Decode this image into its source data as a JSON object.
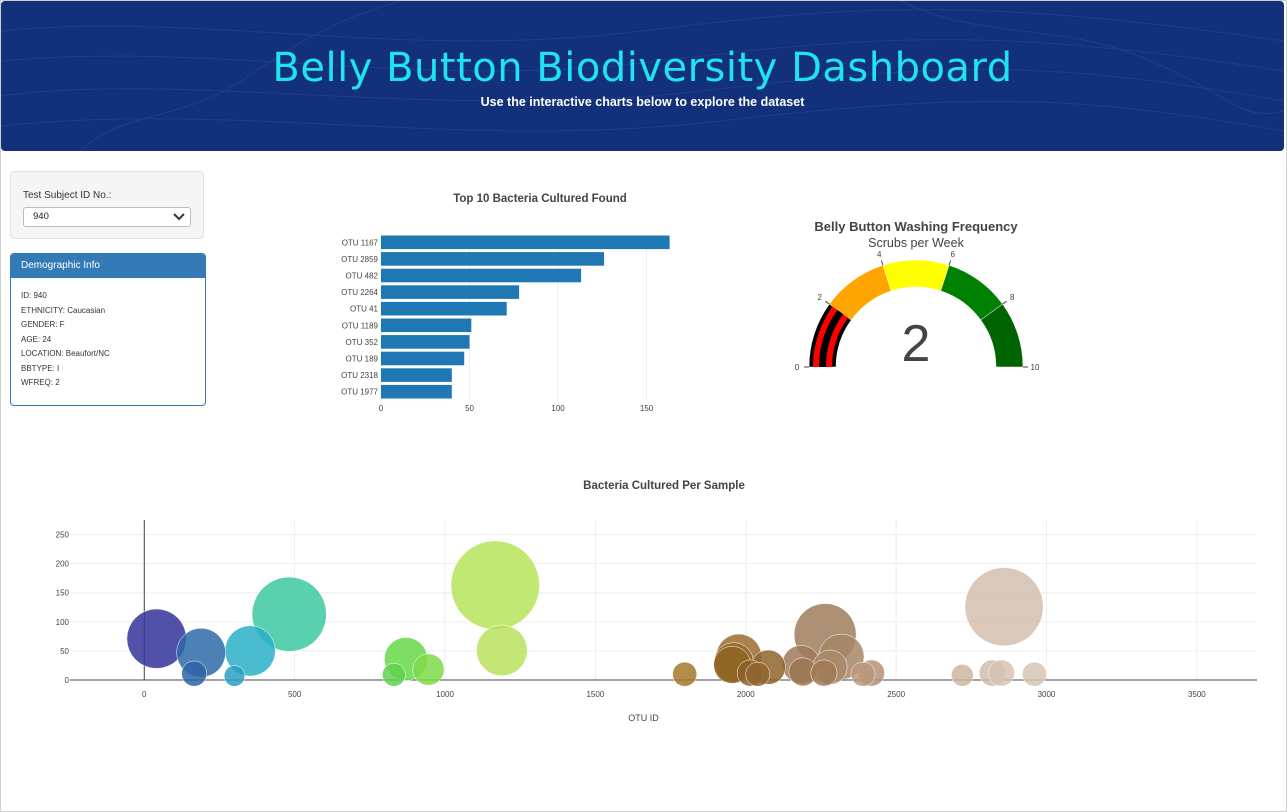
{
  "header": {
    "title": "Belly Button Biodiversity Dashboard",
    "subtitle": "Use the interactive charts below to explore the dataset"
  },
  "selector": {
    "label": "Test Subject ID No.:",
    "selected": "940"
  },
  "demographics": {
    "heading": "Demographic Info",
    "lines": [
      "ID: 940",
      "ETHNICITY: Caucasian",
      "GENDER: F",
      "AGE: 24",
      "LOCATION: Beaufort/NC",
      "BBTYPE: I",
      "WFREQ: 2"
    ]
  },
  "colors": {
    "header_bg": "#13307a",
    "title": "#20e3f0",
    "panel": "#337ab7",
    "bar": "#1f77b4"
  },
  "chart_data": [
    {
      "type": "bar",
      "orientation": "horizontal",
      "title": "Top 10 Bacteria Cultured Found",
      "categories": [
        "OTU 1167",
        "OTU 2859",
        "OTU 482",
        "OTU 2264",
        "OTU 41",
        "OTU 1189",
        "OTU 352",
        "OTU 189",
        "OTU 2318",
        "OTU 1977"
      ],
      "values": [
        163,
        126,
        113,
        78,
        71,
        51,
        50,
        47,
        40,
        40
      ],
      "xticks": [
        0,
        50,
        100,
        150
      ],
      "xlim": [
        0,
        170
      ],
      "grid": true
    },
    {
      "type": "gauge",
      "title": "Belly Button Washing Frequency",
      "subtitle": "Scrubs per Week",
      "value": 2,
      "range": [
        0,
        10
      ],
      "ticks": [
        0,
        2,
        4,
        6,
        8,
        10
      ],
      "bands": [
        {
          "from": 0,
          "to": 2,
          "color": "#000000"
        },
        {
          "from": 2,
          "to": 4,
          "color": "#ffa500"
        },
        {
          "from": 4,
          "to": 6,
          "color": "#ffff00"
        },
        {
          "from": 6,
          "to": 8,
          "color": "#008000"
        },
        {
          "from": 8,
          "to": 10,
          "color": "#006400"
        }
      ],
      "value_bar_color": "#ff0000"
    },
    {
      "type": "scatter",
      "title": "Bacteria Cultured Per Sample",
      "xlabel": "OTU ID",
      "xticks": [
        0,
        500,
        1000,
        1500,
        2000,
        2500,
        3000,
        3500
      ],
      "yticks": [
        0,
        50,
        100,
        150,
        200,
        250
      ],
      "xlim": [
        -380,
        3700
      ],
      "ylim": [
        0,
        275
      ],
      "marker_size_encodes_value": true,
      "points": [
        {
          "x": 41,
          "y": 71,
          "color": "#34329b"
        },
        {
          "x": 189,
          "y": 47,
          "color": "#2e6aa8"
        },
        {
          "x": 352,
          "y": 50,
          "color": "#2ab0c7"
        },
        {
          "x": 482,
          "y": 113,
          "color": "#3cc9a0"
        },
        {
          "x": 870,
          "y": 36,
          "color": "#66d84a"
        },
        {
          "x": 945,
          "y": 18,
          "color": "#7fda48"
        },
        {
          "x": 1167,
          "y": 163,
          "color": "#b5e45a"
        },
        {
          "x": 1189,
          "y": 51,
          "color": "#b9e25f"
        },
        {
          "x": 1977,
          "y": 40,
          "color": "#9a6c2e"
        },
        {
          "x": 1960,
          "y": 30,
          "color": "#94692a"
        },
        {
          "x": 1955,
          "y": 26,
          "color": "#8f6422"
        },
        {
          "x": 2075,
          "y": 22,
          "color": "#8f642d"
        },
        {
          "x": 2184,
          "y": 27,
          "color": "#9d7a5a"
        },
        {
          "x": 2264,
          "y": 78,
          "color": "#a07c5c"
        },
        {
          "x": 2318,
          "y": 40,
          "color": "#a58666"
        },
        {
          "x": 2280,
          "y": 22,
          "color": "#a88968"
        },
        {
          "x": 2859,
          "y": 126,
          "color": "#d4bfae"
        },
        {
          "x": 2820,
          "y": 12,
          "color": "#d2bcac"
        },
        {
          "x": 2850,
          "y": 12,
          "color": "#d6c2b3"
        },
        {
          "x": 2418,
          "y": 12,
          "color": "#b39276"
        },
        {
          "x": 2390,
          "y": 10,
          "color": "#b8977b"
        },
        {
          "x": 2190,
          "y": 14,
          "color": "#9b7650"
        },
        {
          "x": 2260,
          "y": 12,
          "color": "#9f7a55"
        },
        {
          "x": 2040,
          "y": 10,
          "color": "#8f6530"
        },
        {
          "x": 2015,
          "y": 12,
          "color": "#8a6028"
        },
        {
          "x": 1797,
          "y": 10,
          "color": "#a4782a"
        },
        {
          "x": 166,
          "y": 11,
          "color": "#2d64a6"
        },
        {
          "x": 300,
          "y": 7,
          "color": "#2a9fc0"
        },
        {
          "x": 830,
          "y": 9,
          "color": "#5fd24f"
        },
        {
          "x": 2960,
          "y": 10,
          "color": "#d6c4b6"
        },
        {
          "x": 2720,
          "y": 8,
          "color": "#cdb6a2"
        }
      ]
    }
  ]
}
